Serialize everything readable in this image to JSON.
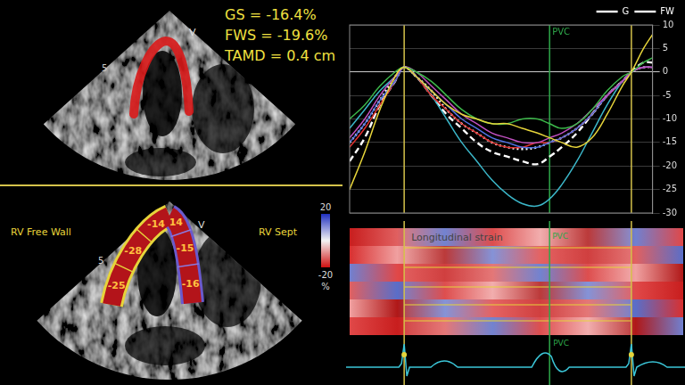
{
  "echo_top": {
    "marker": "V",
    "depth": "5",
    "measurements": [
      "GS = -16.4%",
      "FWS = -19.6%",
      "TAMD = 0.4 cm"
    ]
  },
  "echo_bottom": {
    "marker": "V",
    "depth": "5",
    "walls": [
      "RV Free Wall",
      "RV Sept"
    ],
    "free_wall_segments": [
      "-14",
      "-28",
      "-25"
    ],
    "septum_segments": [
      "14",
      "-15",
      "-16"
    ],
    "color_bar": {
      "range": [
        -20,
        20
      ],
      "ticks": [
        20,
        -20
      ],
      "unit": "%"
    }
  },
  "chart_data": {
    "type": "line",
    "x": [
      0,
      5,
      10,
      15,
      18,
      22,
      27,
      32,
      37,
      42,
      47,
      52,
      57,
      62,
      66,
      70,
      75,
      80,
      85,
      90,
      93,
      97,
      100
    ],
    "xlim": [
      0,
      100
    ],
    "ylim": [
      -30,
      10
    ],
    "yticks": [
      10,
      5,
      0,
      -5,
      -10,
      -15,
      -20,
      -25,
      -30
    ],
    "grid": true,
    "tick_labels": "y",
    "legend": "top-right",
    "series": [
      {
        "color": "#e6d43a",
        "values": [
          -25,
          -17,
          -8,
          -1,
          1,
          -1,
          -4,
          -7,
          -9,
          -10,
          -11,
          -11,
          -12,
          -13,
          -14,
          -15,
          -16,
          -14,
          -9,
          -3,
          0,
          5,
          8
        ]
      },
      {
        "color": "#3cb84a",
        "values": [
          -10,
          -7,
          -3,
          0,
          1,
          0,
          -2,
          -5,
          -8,
          -10,
          -11,
          -11,
          -10,
          -10,
          -11,
          -12,
          -11,
          -8,
          -4,
          -1,
          0,
          2,
          3
        ]
      },
      {
        "color": "#c050c0",
        "values": [
          -14,
          -10,
          -5,
          -1,
          1,
          0,
          -3,
          -6,
          -9,
          -11,
          -13,
          -14,
          -15,
          -15,
          -14,
          -13,
          -11,
          -8,
          -5,
          -2,
          0,
          1,
          1
        ]
      },
      {
        "color": "#5070e0",
        "values": [
          -15,
          -11,
          -6,
          -2,
          1,
          -1,
          -4,
          -7,
          -10,
          -12,
          -14,
          -15,
          -16,
          -16,
          -15,
          -14,
          -12,
          -9,
          -5,
          -2,
          0,
          1,
          1
        ]
      },
      {
        "color": "#e03030",
        "values": [
          -16,
          -12,
          -7,
          -2,
          1,
          -1,
          -5,
          -8,
          -11,
          -13,
          -15,
          -16,
          -16,
          -15,
          -15,
          -14,
          -12,
          -9,
          -5,
          -2,
          0,
          1,
          1
        ]
      },
      {
        "color": "#3bb6c8",
        "values": [
          -12,
          -8,
          -4,
          -1,
          1,
          -1,
          -5,
          -10,
          -15,
          -19,
          -23,
          -26,
          -28,
          -28.5,
          -27,
          -24,
          -19,
          -13,
          -7,
          -2,
          0,
          1,
          1
        ]
      },
      {
        "name": "G",
        "color": "#ffffff",
        "line_style": "dotted",
        "values": [
          -15,
          -11,
          -6,
          -1,
          1,
          -1,
          -4,
          -8,
          -11,
          -13,
          -15,
          -16,
          -16.4,
          -16,
          -15,
          -14,
          -12,
          -9,
          -5,
          -2,
          0,
          1,
          1
        ]
      },
      {
        "name": "FW",
        "color": "#ffffff",
        "line_style": "dashed",
        "values": [
          -19,
          -14,
          -7,
          -2,
          1,
          -1,
          -5,
          -9,
          -12,
          -15,
          -17,
          -18,
          -19,
          -19.6,
          -18,
          -16,
          -13,
          -9,
          -5,
          -2,
          0,
          2,
          2
        ]
      }
    ],
    "annotations": [
      {
        "x": 18,
        "color": "#d4c24a"
      },
      {
        "x": 66,
        "text": "PVC",
        "color": "#2ea84a"
      },
      {
        "x": 93,
        "color": "#d4c24a"
      }
    ]
  },
  "strain_map": {
    "title": "Longitudinal strain",
    "marker": "PVC"
  },
  "ecg": {
    "marker": "PVC"
  }
}
